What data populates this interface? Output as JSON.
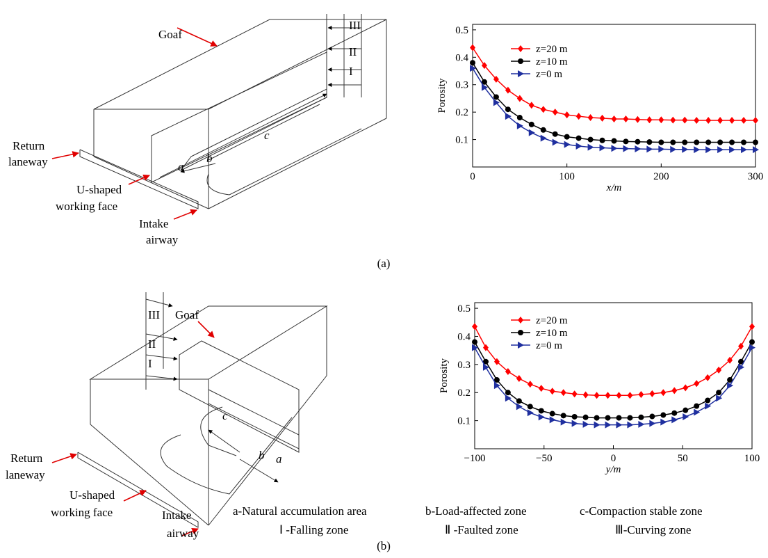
{
  "chart_data": [
    {
      "type": "line",
      "ylabel": "Porosity",
      "xlabel": "x/m",
      "x": [
        0,
        12.5,
        25,
        37.5,
        50,
        62.5,
        75,
        87.5,
        100,
        112.5,
        125,
        137.5,
        150,
        162.5,
        175,
        187.5,
        200,
        212.5,
        225,
        237.5,
        250,
        262.5,
        275,
        287.5,
        300
      ],
      "series": [
        {
          "name": "z=20 m",
          "color": "#ff0000",
          "marker": "diamond",
          "values": [
            0.435,
            0.37,
            0.32,
            0.28,
            0.25,
            0.225,
            0.21,
            0.2,
            0.19,
            0.185,
            0.18,
            0.178,
            0.175,
            0.175,
            0.173,
            0.172,
            0.172,
            0.171,
            0.171,
            0.17,
            0.17,
            0.17,
            0.17,
            0.17,
            0.17
          ]
        },
        {
          "name": "z=10 m",
          "color": "#000000",
          "marker": "circle",
          "values": [
            0.38,
            0.31,
            0.255,
            0.21,
            0.18,
            0.155,
            0.135,
            0.12,
            0.11,
            0.105,
            0.1,
            0.097,
            0.095,
            0.093,
            0.092,
            0.091,
            0.09,
            0.09,
            0.09,
            0.09,
            0.09,
            0.09,
            0.09,
            0.09,
            0.09
          ]
        },
        {
          "name": "z=0 m",
          "color": "#1f2f9f",
          "marker": "triangle-right",
          "values": [
            0.36,
            0.29,
            0.235,
            0.185,
            0.15,
            0.125,
            0.105,
            0.09,
            0.082,
            0.076,
            0.072,
            0.07,
            0.068,
            0.067,
            0.066,
            0.065,
            0.065,
            0.064,
            0.064,
            0.063,
            0.063,
            0.063,
            0.063,
            0.063,
            0.063
          ]
        }
      ],
      "xlim": [
        0,
        300
      ],
      "xticks": [
        0,
        100,
        200,
        300
      ],
      "ylim": [
        0,
        0.52
      ],
      "yticks": [
        0.1,
        0.2,
        0.3,
        0.4,
        0.5
      ]
    },
    {
      "type": "line",
      "ylabel": "Porosity",
      "xlabel": "y/m",
      "x": [
        -100,
        -92,
        -84,
        -76,
        -68,
        -60,
        -52,
        -44,
        -36,
        -28,
        -20,
        -12,
        -4,
        4,
        12,
        20,
        28,
        36,
        44,
        52,
        60,
        68,
        76,
        84,
        92,
        100
      ],
      "series": [
        {
          "name": "z=20 m",
          "color": "#ff0000",
          "marker": "diamond",
          "values": [
            0.435,
            0.36,
            0.31,
            0.275,
            0.25,
            0.23,
            0.215,
            0.205,
            0.2,
            0.195,
            0.192,
            0.19,
            0.19,
            0.19,
            0.19,
            0.193,
            0.196,
            0.2,
            0.207,
            0.217,
            0.232,
            0.253,
            0.28,
            0.315,
            0.365,
            0.435
          ]
        },
        {
          "name": "z=10 m",
          "color": "#000000",
          "marker": "circle",
          "values": [
            0.38,
            0.31,
            0.245,
            0.2,
            0.17,
            0.15,
            0.135,
            0.125,
            0.118,
            0.114,
            0.112,
            0.11,
            0.11,
            0.11,
            0.11,
            0.112,
            0.115,
            0.12,
            0.127,
            0.137,
            0.152,
            0.172,
            0.2,
            0.245,
            0.31,
            0.38
          ]
        },
        {
          "name": "z=0 m",
          "color": "#1f2f9f",
          "marker": "triangle-right",
          "values": [
            0.36,
            0.29,
            0.225,
            0.18,
            0.15,
            0.128,
            0.113,
            0.103,
            0.095,
            0.09,
            0.087,
            0.085,
            0.085,
            0.085,
            0.085,
            0.087,
            0.09,
            0.095,
            0.103,
            0.114,
            0.13,
            0.152,
            0.18,
            0.225,
            0.29,
            0.36
          ]
        }
      ],
      "xlim": [
        -100,
        100
      ],
      "xticks": [
        {
          "value": -100,
          "label": "−100"
        },
        {
          "value": -50,
          "label": "−50"
        },
        0,
        50,
        100
      ],
      "ylim": [
        0,
        0.52
      ],
      "yticks": [
        0.1,
        0.2,
        0.3,
        0.4,
        0.5
      ]
    }
  ],
  "diagram_a": [
    "Goaf",
    "III",
    "II",
    "I",
    "c",
    "b",
    "a",
    "Return",
    "laneway",
    "U-shaped",
    "working face",
    "Intake",
    "airway"
  ],
  "diagram_b": [
    "Goaf",
    "III",
    "II",
    "I",
    "c",
    "b",
    "a",
    "Return",
    "laneway",
    "U-shaped",
    "working face",
    "Intake",
    "airway"
  ],
  "zone_legend": [
    "a-Natural accumulation area",
    "b-Load-affected zone",
    "c-Compaction stable zone",
    "Ⅰ -Falling zone",
    "Ⅱ -Faulted zone",
    "Ⅲ-Curving zone"
  ],
  "captions": [
    "(a)",
    "(b)"
  ]
}
